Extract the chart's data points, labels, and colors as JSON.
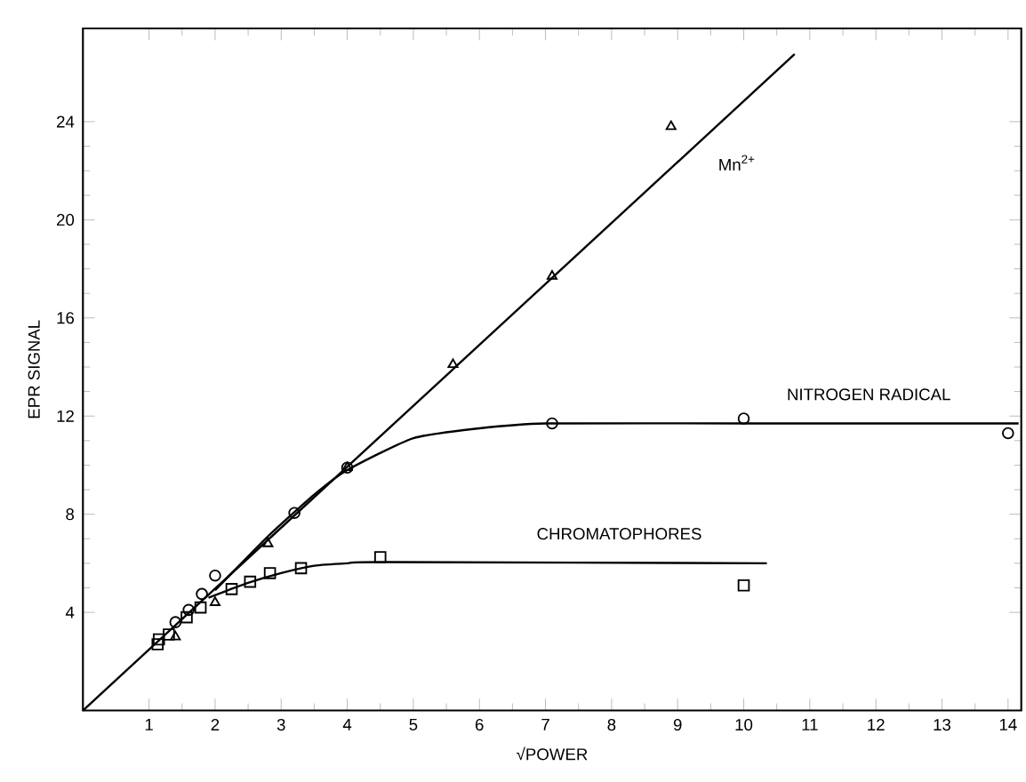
{
  "chart_data": {
    "type": "scatter",
    "xlabel": "√POWER",
    "ylabel": "EPR SIGNAL",
    "xlim": [
      0,
      14.2
    ],
    "ylim": [
      0,
      27.8
    ],
    "xticks": [
      1,
      2,
      3,
      4,
      5,
      6,
      7,
      8,
      9,
      10,
      11,
      12,
      13,
      14
    ],
    "yticks": [
      4,
      8,
      12,
      16,
      20,
      24
    ],
    "grid": false,
    "legend": false,
    "series": [
      {
        "type": "scatter",
        "marker": "triangle",
        "color": "#000000",
        "x": [
          1.4,
          2.0,
          2.8,
          4.0,
          5.6,
          7.1,
          8.9
        ],
        "values": [
          3.0,
          4.4,
          6.8,
          9.9,
          14.1,
          17.7,
          23.8
        ]
      },
      {
        "type": "scatter",
        "marker": "circle",
        "color": "#000000",
        "x": [
          1.4,
          1.6,
          1.8,
          2.0,
          3.2,
          4.0,
          7.1,
          10.0,
          14.0
        ],
        "values": [
          3.6,
          4.1,
          4.75,
          5.5,
          8.05,
          9.9,
          11.7,
          11.9,
          11.3
        ]
      },
      {
        "type": "scatter",
        "marker": "square",
        "color": "#000000",
        "x": [
          1.13,
          1.15,
          1.3,
          1.57,
          1.78,
          2.25,
          2.53,
          2.83,
          3.3,
          4.5,
          10.0
        ],
        "values": [
          2.7,
          2.9,
          3.1,
          3.8,
          4.2,
          4.95,
          5.25,
          5.6,
          5.8,
          6.25,
          5.1
        ]
      },
      {
        "type": "line",
        "name": "Mn$^{2+}$",
        "marker": "none",
        "color": "#000000",
        "x": [
          0,
          10.77
        ],
        "values": [
          0,
          26.75
        ]
      },
      {
        "type": "line",
        "name": "NITROGEN RADICAL",
        "marker": "none",
        "color": "#000000",
        "x": [
          2.0,
          2.8,
          3.5,
          4.0,
          5.0,
          6.0,
          7.0,
          10.0,
          14.16
        ],
        "values": [
          4.9,
          7.1,
          8.8,
          9.8,
          11.1,
          11.5,
          11.7,
          11.7,
          11.7
        ]
      },
      {
        "type": "line",
        "name": "CHROMATOPHORES",
        "marker": "none",
        "color": "#000000",
        "x": [
          1.9,
          2.5,
          3.0,
          3.5,
          4.0,
          4.5,
          10.35
        ],
        "values": [
          4.6,
          5.2,
          5.6,
          5.9,
          6.0,
          6.05,
          6.0
        ]
      }
    ]
  }
}
